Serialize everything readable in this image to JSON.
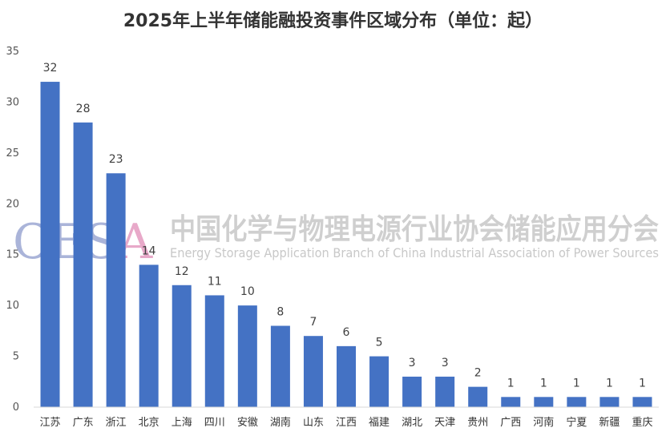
{
  "chart_data": {
    "type": "bar",
    "title": "2025年上半年储能融投资事件区域分布（单位：起）",
    "categories": [
      "江苏",
      "广东",
      "浙江",
      "北京",
      "上海",
      "四川",
      "安徽",
      "湖南",
      "山东",
      "江西",
      "福建",
      "湖北",
      "天津",
      "贵州",
      "广西",
      "河南",
      "宁夏",
      "新疆",
      "重庆"
    ],
    "values": [
      32,
      28,
      23,
      14,
      12,
      11,
      10,
      8,
      7,
      6,
      5,
      3,
      3,
      2,
      1,
      1,
      1,
      1,
      1
    ],
    "ylim": [
      0,
      35
    ],
    "yticks": [
      0,
      5,
      10,
      15,
      20,
      25,
      30,
      35
    ],
    "grid": false,
    "legend": "none",
    "colors": {
      "bar": "#4472C4",
      "watermark_logo_a": "#aab4d9",
      "watermark_logo_b": "#e8a9c9"
    }
  },
  "watermark": {
    "logo": "CESA",
    "cn": "中国化学与物理电源行业协会储能应用分会",
    "en": "Energy Storage Application Branch of China Industrial Association of Power Sources"
  }
}
